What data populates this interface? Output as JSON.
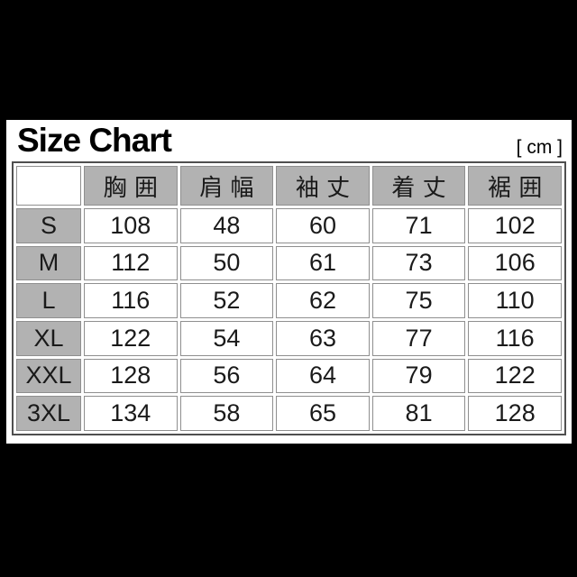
{
  "page": {
    "background_color": "#000000",
    "panel_color": "#ffffff",
    "header_cell_color": "#b2b2b2",
    "cell_border_color": "#8f8f8f",
    "outer_border_color": "#4f4f4f"
  },
  "header": {
    "title": "Size Chart",
    "unit_label": "[ cm ]"
  },
  "chart_data": {
    "type": "table",
    "title": "Size Chart",
    "unit": "cm",
    "columns": [
      "胸囲",
      "肩幅",
      "袖丈",
      "着丈",
      "裾囲"
    ],
    "rows": [
      {
        "label": "S",
        "values": [
          108,
          48,
          60,
          71,
          102
        ]
      },
      {
        "label": "M",
        "values": [
          112,
          50,
          61,
          73,
          106
        ]
      },
      {
        "label": "L",
        "values": [
          116,
          52,
          62,
          75,
          110
        ]
      },
      {
        "label": "XL",
        "values": [
          122,
          54,
          63,
          77,
          116
        ]
      },
      {
        "label": "XXL",
        "values": [
          128,
          56,
          64,
          79,
          122
        ]
      },
      {
        "label": "3XL",
        "values": [
          134,
          58,
          65,
          81,
          128
        ]
      }
    ]
  }
}
